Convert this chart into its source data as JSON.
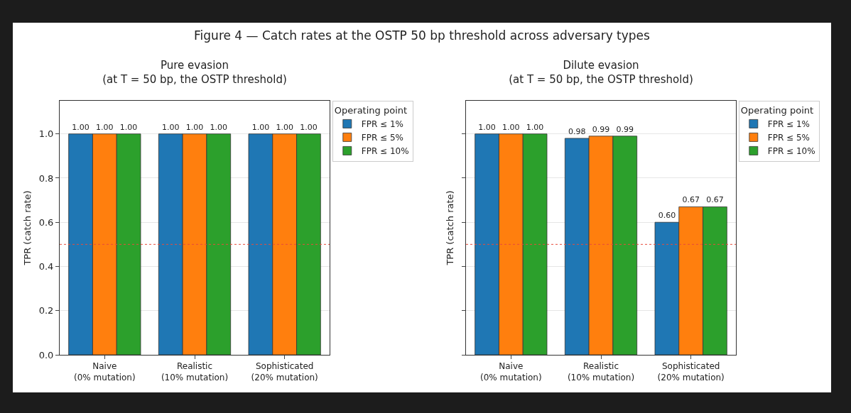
{
  "chart_data": [
    {
      "type": "bar",
      "title": "Pure evasion",
      "subtitle": "(at T = 50 bp, the OSTP threshold)",
      "annotations": [
        "Figure 4 — Catch rates at the OSTP 50 bp threshold across adversary types"
      ],
      "ylabel": "TPR (catch rate)",
      "legend_title": "Operating point",
      "categories": [
        "Naive\n(0% mutation)",
        "Realistic\n(10% mutation)",
        "Sophisticated\n(20% mutation)"
      ],
      "series": [
        {
          "name": "FPR ≤ 1%",
          "color": "#1f77b4",
          "values": [
            1.0,
            1.0,
            1.0
          ],
          "value_labels": [
            "1.00",
            "1.00",
            "1.00"
          ]
        },
        {
          "name": "FPR ≤ 5%",
          "color": "#ff7f0e",
          "values": [
            1.0,
            1.0,
            1.0
          ],
          "value_labels": [
            "1.00",
            "1.00",
            "1.00"
          ]
        },
        {
          "name": "FPR ≤ 10%",
          "color": "#2ca02c",
          "values": [
            1.0,
            1.0,
            1.0
          ],
          "value_labels": [
            "1.00",
            "1.00",
            "1.00"
          ]
        }
      ],
      "ylim": [
        0,
        1.15
      ],
      "yticks": [
        {
          "value": 0,
          "label": "0.0"
        },
        {
          "value": 0.2,
          "label": "0.2"
        },
        {
          "value": 0.4,
          "label": "0.4"
        },
        {
          "value": 0.6,
          "label": "0.6"
        },
        {
          "value": 0.8,
          "label": "0.8"
        },
        {
          "value": 1,
          "label": "1.0"
        }
      ],
      "grid": "y",
      "legend": "top right",
      "ref_lines": [
        {
          "axis": "y",
          "value": 0.5,
          "color": "#e74c3c",
          "line_style": "dotted"
        }
      ]
    },
    {
      "type": "bar",
      "title": "Dilute evasion",
      "subtitle": "(at T = 50 bp, the OSTP threshold)",
      "ylabel": "TPR (catch rate)",
      "legend_title": "Operating point",
      "categories": [
        "Naive\n(0% mutation)",
        "Realistic\n(10% mutation)",
        "Sophisticated\n(20% mutation)"
      ],
      "series": [
        {
          "name": "FPR ≤ 1%",
          "color": "#1f77b4",
          "values": [
            1.0,
            0.98,
            0.6
          ],
          "value_labels": [
            "1.00",
            "0.98",
            "0.60"
          ]
        },
        {
          "name": "FPR ≤ 5%",
          "color": "#ff7f0e",
          "values": [
            1.0,
            0.99,
            0.67
          ],
          "value_labels": [
            "1.00",
            "0.99",
            "0.67"
          ]
        },
        {
          "name": "FPR ≤ 10%",
          "color": "#2ca02c",
          "values": [
            1.0,
            0.99,
            0.67
          ],
          "value_labels": [
            "1.00",
            "0.99",
            "0.67"
          ]
        }
      ],
      "ylim": [
        0,
        1.15
      ],
      "yticks": [
        {
          "value": 0,
          "label": null
        },
        {
          "value": 0.2,
          "label": null
        },
        {
          "value": 0.4,
          "label": null
        },
        {
          "value": 0.6,
          "label": null
        },
        {
          "value": 0.8,
          "label": null
        },
        {
          "value": 1,
          "label": null
        }
      ],
      "grid": "y",
      "legend": "top right",
      "tick_labels": "x",
      "ref_lines": [
        {
          "axis": "y",
          "value": 0.5,
          "color": "#e74c3c",
          "line_style": "dotted"
        }
      ]
    }
  ]
}
